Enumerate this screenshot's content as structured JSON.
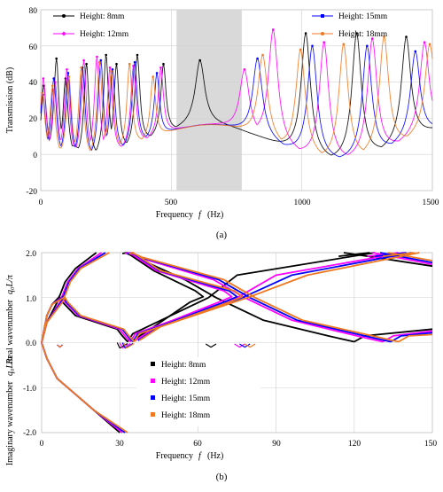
{
  "panel_a": {
    "label": "(a)",
    "chart_data": {
      "type": "line",
      "title": "",
      "xlabel": "Frequency",
      "xlabel_symbol": "f",
      "xlabel_unit": "(Hz)",
      "ylabel": "Transmission (dB)",
      "xlim": [
        0,
        1500
      ],
      "ylim": [
        -20,
        80
      ],
      "xticks": [
        "0",
        "500",
        "1000",
        "1500"
      ],
      "yticks": [
        "-20",
        "0",
        "20",
        "40",
        "60",
        "80"
      ],
      "grid": true,
      "legend_position": "top",
      "shaded_band": [
        520,
        770
      ],
      "series": [
        {
          "name": "Height: 8mm",
          "color": "#000000",
          "marker": "circle",
          "peaks": [
            [
              12,
              38
            ],
            [
              60,
              53
            ],
            [
              95,
              42
            ],
            [
              175,
              50
            ],
            [
              250,
              55
            ],
            [
              290,
              50
            ],
            [
              370,
              55
            ],
            [
              470,
              50
            ],
            [
              610,
              52
            ],
            [
              1015,
              67
            ],
            [
              1210,
              67
            ],
            [
              1400,
              65
            ]
          ]
        },
        {
          "name": "Height: 12mm",
          "color": "#ff00ff",
          "marker": "diamond",
          "peaks": [
            [
              10,
              42
            ],
            [
              55,
              40
            ],
            [
              100,
              47
            ],
            [
              165,
              52
            ],
            [
              215,
              54
            ],
            [
              265,
              48
            ],
            [
              355,
              49
            ],
            [
              460,
              48
            ],
            [
              780,
              47
            ],
            [
              890,
              69
            ],
            [
              1085,
              62
            ],
            [
              1270,
              64
            ],
            [
              1470,
              62
            ]
          ]
        },
        {
          "name": "Height: 15mm",
          "color": "#0000ff",
          "marker": "square",
          "peaks": [
            [
              8,
              33
            ],
            [
              50,
              42
            ],
            [
              105,
              45
            ],
            [
              160,
              48
            ],
            [
              230,
              52
            ],
            [
              275,
              47
            ],
            [
              360,
              51
            ],
            [
              445,
              45
            ],
            [
              830,
              53
            ],
            [
              1040,
              60
            ],
            [
              1250,
              60
            ],
            [
              1435,
              57
            ]
          ]
        },
        {
          "name": "Height: 18mm",
          "color": "#f07820",
          "marker": "circle",
          "peaks": [
            [
              6,
              34
            ],
            [
              45,
              38
            ],
            [
              108,
              43
            ],
            [
              155,
              48
            ],
            [
              225,
              51
            ],
            [
              270,
              46
            ],
            [
              340,
              50
            ],
            [
              430,
              43
            ],
            [
              850,
              55
            ],
            [
              995,
              58
            ],
            [
              1160,
              61
            ],
            [
              1315,
              65
            ],
            [
              1490,
              61
            ]
          ]
        }
      ]
    }
  },
  "panel_b": {
    "label": "(b)",
    "chart_data": {
      "type": "scatter",
      "title": "",
      "xlabel": "Frequency",
      "xlabel_symbol": "f",
      "xlabel_unit": "(Hz)",
      "ylabel_top": "Real wavenumber",
      "ylabel_top_symbol": "q₀L/π",
      "ylabel_bottom": "Imaginary wavenumber",
      "ylabel_bottom_symbol": "q₀L/π",
      "xlim": [
        0,
        150
      ],
      "ylim": [
        -2.0,
        2.0
      ],
      "xticks": [
        "0",
        "30",
        "60",
        "90",
        "120",
        "150"
      ],
      "yticks": [
        "-2.0",
        "-1.0",
        "0.0",
        "1.0",
        "2.0"
      ],
      "grid": true,
      "legend_position": "lower-center",
      "series": [
        {
          "name": "Height: 8mm",
          "color": "#000000",
          "marker": "square",
          "fc": 7,
          "f1": 33,
          "f2": 65,
          "f3": 120
        },
        {
          "name": "Height: 12mm",
          "color": "#ff00ff",
          "marker": "square",
          "fc": 8,
          "f1": 34,
          "f2": 76,
          "f3": 131
        },
        {
          "name": "Height: 15mm",
          "color": "#0000ff",
          "marker": "square",
          "fc": 8.5,
          "f1": 35,
          "f2": 78,
          "f3": 134
        },
        {
          "name": "Height: 18mm",
          "color": "#f07820",
          "marker": "square",
          "fc": 9,
          "f1": 35.5,
          "f2": 80,
          "f3": 137
        }
      ]
    }
  }
}
